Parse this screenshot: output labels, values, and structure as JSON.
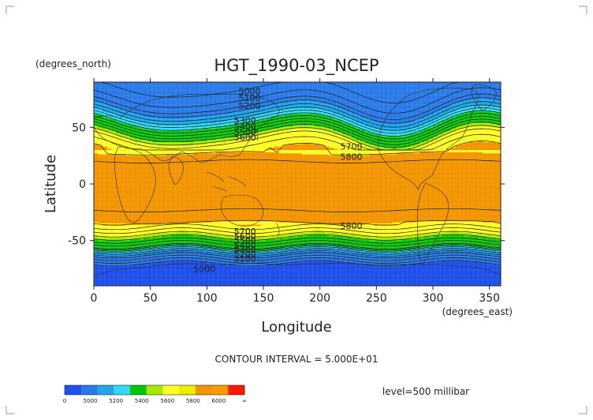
{
  "chart_data": {
    "type": "heatmap",
    "title": "HGT_1990-03_NCEP",
    "xlabel": "Longitude",
    "ylabel": "Latitude",
    "x_units": "(degrees_east)",
    "y_units": "(degrees_north)",
    "xlim": [
      0,
      360
    ],
    "ylim": [
      -90,
      90
    ],
    "x_ticks": [
      "0",
      "50",
      "100",
      "150",
      "200",
      "250",
      "300",
      "350"
    ],
    "y_ticks": [
      "50",
      "0",
      "-50"
    ],
    "contour_interval": "CONTOUR INTERVAL = 5.000E+01",
    "level": "level=500 millibar",
    "legend": {
      "labels": [
        "0",
        "5000",
        "5200",
        "5400",
        "5600",
        "5800",
        "6000",
        "∞"
      ],
      "colors": [
        "#2050ee",
        "#2a78ea",
        "#1ea5ea",
        "#33d8f5",
        "#00c800",
        "#a8e800",
        "#ffff28",
        "#f0ec00",
        "#f29500",
        "#ff9a00",
        "#ff1800"
      ]
    },
    "band_colors": {
      "deep_blue": "#1e4fe8",
      "blue": "#2a7ae8",
      "mid_blue": "#1ea6ec",
      "cyan": "#33dcf7",
      "green": "#0fcc0f",
      "yellow_green": "#aaea00",
      "yellow": "#ffff28",
      "orange": "#f29500",
      "red": "#ff1800"
    },
    "zonal_profile": {
      "latitudes": [
        -90,
        -80,
        -70,
        -63,
        -58,
        -55,
        -50,
        -45,
        -40,
        -35,
        -30,
        -20,
        0,
        20,
        26,
        32,
        38,
        45,
        50,
        55,
        60,
        70,
        80,
        90
      ],
      "height_m": [
        4980,
        4990,
        5000,
        5150,
        5300,
        5450,
        5550,
        5640,
        5720,
        5790,
        5830,
        5860,
        5870,
        5850,
        5810,
        5760,
        5700,
        5580,
        5480,
        5380,
        5280,
        5130,
        5060,
        5030
      ]
    },
    "contour_labels": [
      {
        "text": "5000",
        "lon": 128,
        "lat": 82
      },
      {
        "text": "5100",
        "lon": 128,
        "lat": 76
      },
      {
        "text": "5200",
        "lon": 128,
        "lat": 69
      },
      {
        "text": "5300",
        "lon": 124,
        "lat": 56
      },
      {
        "text": "5400",
        "lon": 124,
        "lat": 51
      },
      {
        "text": "5500",
        "lon": 124,
        "lat": 46
      },
      {
        "text": "5600",
        "lon": 124,
        "lat": 41
      },
      {
        "text": "5700",
        "lon": 218,
        "lat": 33
      },
      {
        "text": "5800",
        "lon": 218,
        "lat": 24
      },
      {
        "text": "5800",
        "lon": 218,
        "lat": -37
      },
      {
        "text": "5700",
        "lon": 124,
        "lat": -42
      },
      {
        "text": "5600",
        "lon": 124,
        "lat": -46
      },
      {
        "text": "5500",
        "lon": 124,
        "lat": -50
      },
      {
        "text": "5400",
        "lon": 124,
        "lat": -54
      },
      {
        "text": "5300",
        "lon": 124,
        "lat": -58
      },
      {
        "text": "5200",
        "lon": 124,
        "lat": -62
      },
      {
        "text": "5100",
        "lon": 124,
        "lat": -66
      },
      {
        "text": "5000",
        "lon": 88,
        "lat": -75
      }
    ]
  }
}
